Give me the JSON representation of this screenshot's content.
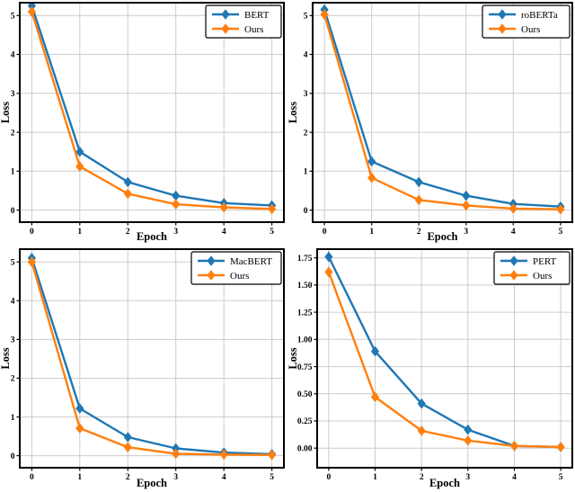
{
  "figure": {
    "background": "#ffffff"
  },
  "colors": {
    "baseline_blue": "#1f77b4",
    "ours_orange": "#ff7f0e",
    "grid": "#cccccc",
    "axis": "#000000",
    "legend_background": "#ffffff"
  },
  "chart_data": [
    {
      "id": "bert-vs-ours",
      "type": "line",
      "title": "",
      "xlabel": "Epoch",
      "ylabel": "Loss",
      "x": [
        0,
        1,
        2,
        3,
        4,
        5
      ],
      "xtick_labels": [
        "0",
        "1",
        "2",
        "3",
        "4",
        "5"
      ],
      "ytick_values": [
        0,
        1,
        2,
        3,
        4,
        5
      ],
      "ytick_labels": [
        "0",
        "1",
        "2",
        "3",
        "4",
        "5"
      ],
      "xlim": [
        -0.25,
        5.25
      ],
      "ylim": [
        -0.31,
        5.33
      ],
      "grid": true,
      "legend_position": "upper right",
      "series": [
        {
          "name": "BERT",
          "color": "#1f77b4",
          "marker": "diamond",
          "values": [
            5.25,
            1.5,
            0.72,
            0.37,
            0.18,
            0.12
          ],
          "yerr": [
            0.13,
            0.1,
            0.08,
            0.06,
            0.05,
            0.05
          ]
        },
        {
          "name": "Ours",
          "color": "#ff7f0e",
          "marker": "diamond",
          "values": [
            5.1,
            1.12,
            0.42,
            0.15,
            0.07,
            0.03
          ],
          "yerr": [
            0.13,
            0.1,
            0.08,
            0.06,
            0.05,
            0.05
          ]
        }
      ]
    },
    {
      "id": "roberta-vs-ours",
      "type": "line",
      "title": "",
      "xlabel": "Epoch",
      "ylabel": "Loss",
      "x": [
        0,
        1,
        2,
        3,
        4,
        5
      ],
      "xtick_labels": [
        "0",
        "1",
        "2",
        "3",
        "4",
        "5"
      ],
      "ytick_values": [
        0,
        1,
        2,
        3,
        4,
        5
      ],
      "ytick_labels": [
        "0",
        "1",
        "2",
        "3",
        "4",
        "5"
      ],
      "xlim": [
        -0.25,
        5.25
      ],
      "ylim": [
        -0.31,
        5.33
      ],
      "grid": true,
      "legend_position": "upper right",
      "series": [
        {
          "name": "roBERTa",
          "color": "#1f77b4",
          "marker": "diamond",
          "values": [
            5.15,
            1.25,
            0.72,
            0.37,
            0.16,
            0.09
          ],
          "yerr": [
            0.13,
            0.1,
            0.08,
            0.06,
            0.05,
            0.05
          ]
        },
        {
          "name": "Ours",
          "color": "#ff7f0e",
          "marker": "diamond",
          "values": [
            5.03,
            0.83,
            0.26,
            0.12,
            0.04,
            0.02
          ],
          "yerr": [
            0.13,
            0.1,
            0.08,
            0.06,
            0.05,
            0.05
          ]
        }
      ]
    },
    {
      "id": "macbert-vs-ours",
      "type": "line",
      "title": "",
      "xlabel": "Epoch",
      "ylabel": "Loss",
      "x": [
        0,
        1,
        2,
        3,
        4,
        5
      ],
      "xtick_labels": [
        "0",
        "1",
        "2",
        "3",
        "4",
        "5"
      ],
      "ytick_values": [
        0,
        1,
        2,
        3,
        4,
        5
      ],
      "ytick_labels": [
        "0",
        "1",
        "2",
        "3",
        "4",
        "5"
      ],
      "xlim": [
        -0.25,
        5.25
      ],
      "ylim": [
        -0.31,
        5.33
      ],
      "grid": true,
      "legend_position": "upper right",
      "series": [
        {
          "name": "MacBERT",
          "color": "#1f77b4",
          "marker": "diamond",
          "values": [
            5.1,
            1.22,
            0.48,
            0.19,
            0.08,
            0.04
          ],
          "yerr": [
            0.13,
            0.1,
            0.08,
            0.06,
            0.05,
            0.05
          ]
        },
        {
          "name": "Ours",
          "color": "#ff7f0e",
          "marker": "diamond",
          "values": [
            5.0,
            0.71,
            0.22,
            0.05,
            0.03,
            0.02
          ],
          "yerr": [
            0.13,
            0.1,
            0.08,
            0.06,
            0.05,
            0.05
          ]
        }
      ]
    },
    {
      "id": "pert-vs-ours",
      "type": "line",
      "title": "",
      "xlabel": "Epoch",
      "ylabel": "Loss",
      "x": [
        0,
        1,
        2,
        3,
        4,
        5
      ],
      "xtick_labels": [
        "0",
        "1",
        "2",
        "3",
        "4",
        "5"
      ],
      "ytick_values": [
        0,
        0.25,
        0.5,
        0.75,
        1.0,
        1.25,
        1.5,
        1.75
      ],
      "ytick_labels": [
        "0.00",
        "0.25",
        "0.50",
        "0.75",
        "1.00",
        "1.25",
        "1.50",
        "1.75"
      ],
      "xlim": [
        -0.25,
        5.25
      ],
      "ylim": [
        -0.18,
        1.83
      ],
      "grid": true,
      "legend_position": "upper right",
      "series": [
        {
          "name": "PERT",
          "color": "#1f77b4",
          "marker": "diamond",
          "values": [
            1.76,
            0.89,
            0.41,
            0.17,
            0.02,
            0.01
          ],
          "yerr": [
            0.045,
            0.035,
            0.03,
            0.02,
            0.015,
            0.015
          ]
        },
        {
          "name": "Ours",
          "color": "#ff7f0e",
          "marker": "diamond",
          "values": [
            1.62,
            0.47,
            0.16,
            0.07,
            0.02,
            0.01
          ],
          "yerr": [
            0.045,
            0.035,
            0.03,
            0.02,
            0.015,
            0.015
          ]
        }
      ]
    }
  ]
}
